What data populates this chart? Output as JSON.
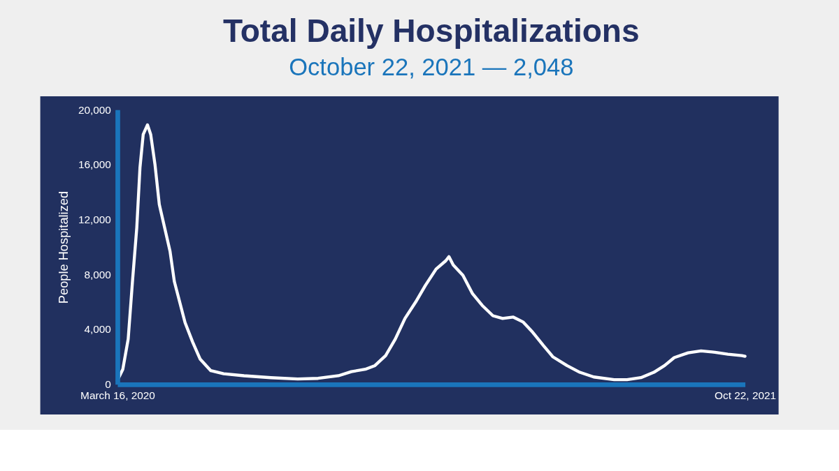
{
  "chart_data": {
    "type": "line",
    "title": "Total Daily Hospitalizations",
    "subtitle": "October 22, 2021 — 2,048",
    "ylabel": "People Hospitalized",
    "x": [
      "2020-03-16",
      "2020-03-21",
      "2020-03-26",
      "2020-03-30",
      "2020-04-03",
      "2020-04-06",
      "2020-04-09",
      "2020-04-13",
      "2020-04-16",
      "2020-04-20",
      "2020-04-24",
      "2020-04-29",
      "2020-05-04",
      "2020-05-08",
      "2020-05-13",
      "2020-05-18",
      "2020-05-25",
      "2020-06-01",
      "2020-06-11",
      "2020-06-23",
      "2020-07-12",
      "2020-08-06",
      "2020-08-31",
      "2020-09-19",
      "2020-10-08",
      "2020-10-20",
      "2020-11-02",
      "2020-11-11",
      "2020-11-21",
      "2020-11-30",
      "2020-12-09",
      "2020-12-19",
      "2020-12-28",
      "2021-01-07",
      "2021-01-16",
      "2021-01-19",
      "2021-01-23",
      "2021-02-01",
      "2021-02-10",
      "2021-02-19",
      "2021-03-01",
      "2021-03-10",
      "2021-03-20",
      "2021-03-29",
      "2021-04-07",
      "2021-04-17",
      "2021-04-26",
      "2021-05-09",
      "2021-05-21",
      "2021-06-03",
      "2021-06-22",
      "2021-07-04",
      "2021-07-17",
      "2021-07-29",
      "2021-08-08",
      "2021-08-17",
      "2021-08-30",
      "2021-09-11",
      "2021-09-24",
      "2021-10-06",
      "2021-10-19",
      "2021-10-22"
    ],
    "series": [
      {
        "color": "#ffffff",
        "values": [
          300,
          1100,
          3300,
          7500,
          11400,
          15800,
          18200,
          18900,
          18200,
          16000,
          13100,
          11400,
          9700,
          7500,
          6000,
          4500,
          3100,
          1850,
          1000,
          780,
          630,
          490,
          390,
          440,
          630,
          930,
          1100,
          1370,
          2100,
          3300,
          4800,
          6000,
          7200,
          8400,
          9000,
          9300,
          8700,
          7950,
          6600,
          5750,
          5000,
          4800,
          4900,
          4550,
          3800,
          2830,
          2000,
          1370,
          880,
          540,
          340,
          340,
          490,
          880,
          1370,
          1950,
          2300,
          2440,
          2340,
          2200,
          2100,
          2048
        ]
      }
    ],
    "xlim": [
      "2020-03-16",
      "2021-10-22"
    ],
    "xticks": [
      {
        "value": "2020-03-16",
        "label": "March 16, 2020"
      },
      {
        "value": "2021-10-22",
        "label": "Oct 22, 2021"
      }
    ],
    "ylim": [
      0,
      20000
    ],
    "yticks": [
      {
        "value": 0,
        "label": "0"
      },
      {
        "value": 4000,
        "label": "4,000"
      },
      {
        "value": 8000,
        "label": "8,000"
      },
      {
        "value": 12000,
        "label": "12,000"
      },
      {
        "value": 16000,
        "label": "16,000"
      },
      {
        "value": 20000,
        "label": "20,000"
      }
    ],
    "grid": false,
    "legend": false,
    "line_style": "solid",
    "marker": "none"
  }
}
